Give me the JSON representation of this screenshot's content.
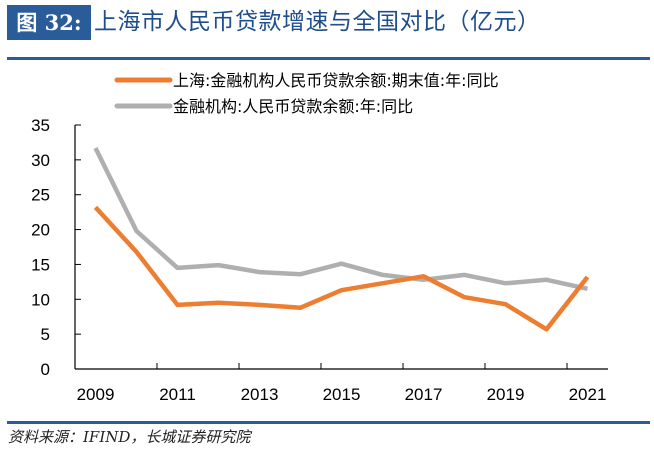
{
  "header": {
    "figure_label": "图 32:",
    "title": "上海市人民币贷款增速与全国对比（亿元）"
  },
  "footer": {
    "source": "资料来源：IFIND，长城证券研究院"
  },
  "chart_data": {
    "type": "line",
    "title": "上海市人民币贷款增速与全国对比（亿元）",
    "xlabel": "",
    "ylabel": "",
    "x": [
      2009,
      2010,
      2011,
      2012,
      2013,
      2014,
      2015,
      2016,
      2017,
      2018,
      2019,
      2020,
      2021
    ],
    "x_tick_labels": [
      "2009",
      "2011",
      "2013",
      "2015",
      "2017",
      "2019",
      "2021"
    ],
    "y_tick_labels": [
      "0",
      "5",
      "10",
      "15",
      "20",
      "25",
      "30",
      "35"
    ],
    "ylim": [
      0,
      35
    ],
    "grid": false,
    "legend_position": "top",
    "series": [
      {
        "name": "上海:金融机构人民币贷款余额:期末值:年:同比",
        "color": "#ED7D31",
        "values": [
          23.2,
          16.8,
          9.2,
          9.5,
          9.2,
          8.8,
          11.3,
          12.3,
          13.3,
          10.3,
          9.3,
          5.7,
          13.2
        ]
      },
      {
        "name": "金融机构:人民币贷款余额:年:同比",
        "color": "#AFAFAF",
        "values": [
          31.7,
          19.8,
          14.5,
          14.9,
          13.9,
          13.6,
          15.1,
          13.5,
          12.8,
          13.5,
          12.3,
          12.8,
          11.5
        ]
      }
    ]
  }
}
